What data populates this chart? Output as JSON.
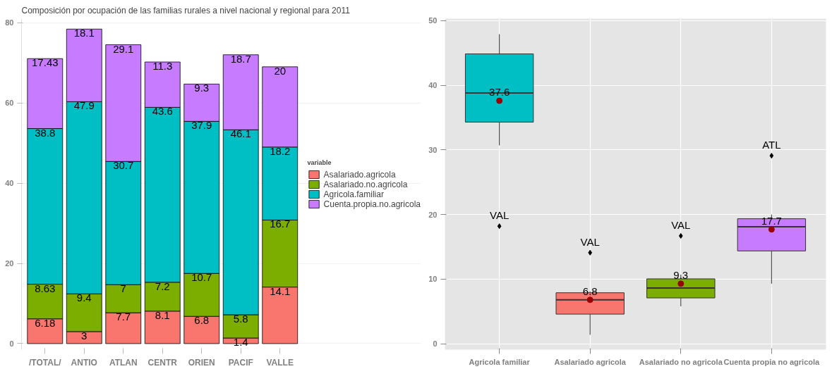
{
  "chart_data": [
    {
      "type": "bar",
      "title": "Composición por ocupación de las familias rurales a nivel nacional y regional para 2011",
      "stacked": true,
      "data_labels": true,
      "legend": "right",
      "legend_title": "variable",
      "grid": "y",
      "categories": [
        "/TOTAL/",
        "ANTIO",
        "ATLAN",
        "CENTR",
        "ORIEN",
        "PACIF",
        "VALLE"
      ],
      "ylim": [
        -1.5,
        81
      ],
      "yticks": [
        0,
        20,
        40,
        60,
        80
      ],
      "series": [
        {
          "name": "Asalariado.agricola",
          "color": "#f8766d",
          "values": [
            6.18,
            3,
            7.7,
            8.1,
            6.8,
            1.4,
            14.1
          ]
        },
        {
          "name": "Asalariado.no.agricola",
          "color": "#7cae00",
          "values": [
            8.63,
            9.4,
            7,
            7.2,
            10.7,
            5.8,
            16.7
          ]
        },
        {
          "name": "Agricola.familiar",
          "color": "#00bfc4",
          "values": [
            38.8,
            47.9,
            30.7,
            43.6,
            37.9,
            46.1,
            18.2
          ]
        },
        {
          "name": "Cuenta.propia.no.agricola",
          "color": "#c77cff",
          "values": [
            17.43,
            18.1,
            29.1,
            11.3,
            9.3,
            18.7,
            20
          ]
        }
      ]
    },
    {
      "type": "box",
      "grid": true,
      "categories": [
        "Agricola familiar",
        "Asalariado agricola",
        "Asalariado no agricola",
        "Cuenta propia no agricola"
      ],
      "colors": [
        "#00bfc4",
        "#f8766d",
        "#7cae00",
        "#c77cff"
      ],
      "ylim": [
        -0.9,
        50.3
      ],
      "yticks": [
        0,
        10,
        20,
        30,
        40,
        50
      ],
      "boxes": [
        {
          "low": 30.7,
          "q1": 34.3,
          "median": 38.8,
          "q3": 44.85,
          "high": 47.9,
          "mean": 37.6,
          "outliers": [
            18.2
          ]
        },
        {
          "low": 1.4,
          "q1": 4.59,
          "median": 6.8,
          "q3": 7.9,
          "high": 8.1,
          "mean": 6.8,
          "outliers": [
            14.1
          ]
        },
        {
          "low": 5.8,
          "q1": 7.1,
          "median": 8.63,
          "q3": 10.05,
          "high": 10.7,
          "mean": 9.3,
          "outliers": [
            16.7
          ]
        },
        {
          "low": 9.3,
          "q1": 14.37,
          "median": 18.1,
          "q3": 19.35,
          "high": 20,
          "mean": 17.7,
          "outliers": [
            29.1
          ]
        }
      ],
      "annotations": [
        "37.6",
        "6.8",
        "9.3",
        "17.7",
        "VAL",
        "VAL",
        "VAL",
        "ATL"
      ]
    }
  ]
}
